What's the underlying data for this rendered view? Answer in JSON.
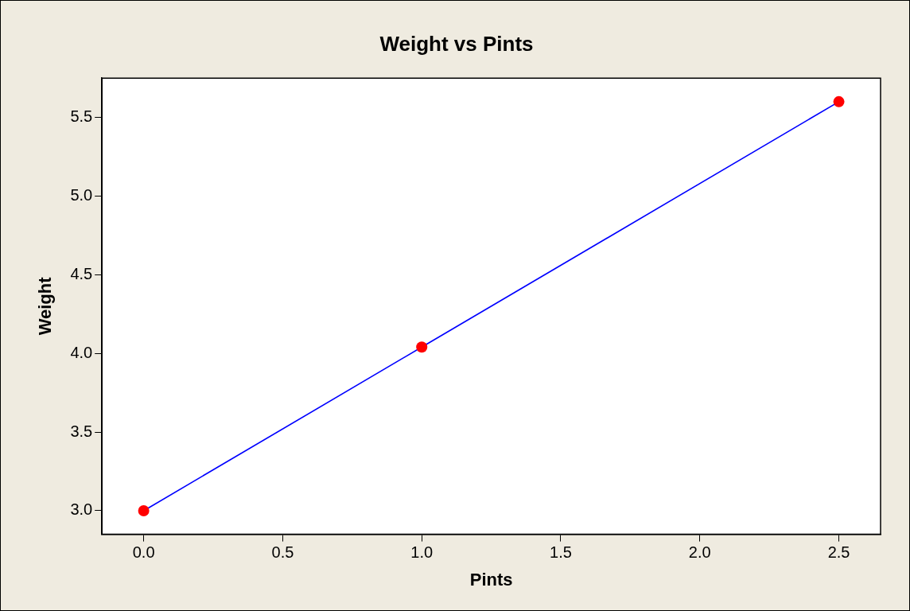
{
  "chart_data": {
    "type": "line",
    "title": "Weight vs Pints",
    "xlabel": "Pints",
    "ylabel": "Weight",
    "x": [
      0,
      1,
      2.5
    ],
    "series": [
      {
        "color": "#0000ff",
        "marker": "none",
        "values": [
          3.0,
          4.04,
          5.6
        ]
      },
      {
        "type": "scatter",
        "color": "#ff0000",
        "marker": "circle",
        "values": [
          3.0,
          4.04,
          5.6
        ]
      }
    ],
    "xlim": [
      -0.15,
      2.65
    ],
    "ylim": [
      2.85,
      5.75
    ],
    "xticks": [
      {
        "value": 0,
        "label": "0.0"
      },
      {
        "value": 0.5,
        "label": "0.5"
      },
      {
        "value": 1,
        "label": "1.0"
      },
      {
        "value": 1.5,
        "label": "1.5"
      },
      {
        "value": 2,
        "label": "2.0"
      },
      {
        "value": 2.5,
        "label": "2.5"
      }
    ],
    "yticks": [
      {
        "value": 3,
        "label": "3.0"
      },
      {
        "value": 3.5,
        "label": "3.5"
      },
      {
        "value": 4,
        "label": "4.0"
      },
      {
        "value": 4.5,
        "label": "4.5"
      },
      {
        "value": 5,
        "label": "5.0"
      },
      {
        "value": 5.5,
        "label": "5.5"
      }
    ],
    "grid": false,
    "legend": false,
    "line_style": "solid"
  }
}
